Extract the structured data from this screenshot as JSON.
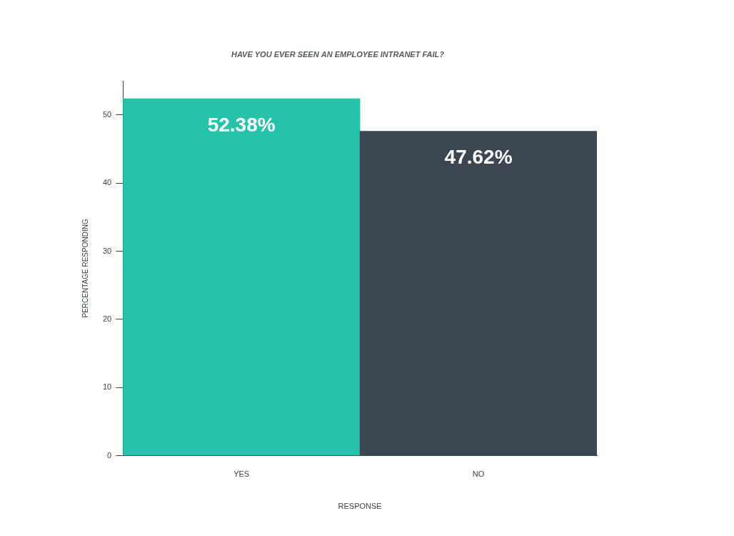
{
  "chart_data": {
    "type": "bar",
    "title": "HAVE YOU EVER SEEN AN EMPLOYEE INTRANET FAIL?",
    "x_label": "RESPONSE",
    "y_label": "PERCENTAGE RESPONDING",
    "categories": [
      "YES",
      "NO"
    ],
    "values": [
      52.38,
      47.62
    ],
    "value_labels": [
      "52.38%",
      "47.62%"
    ],
    "colors": [
      "#26c3aa",
      "#3b4650"
    ],
    "ylim": [
      0,
      55
    ],
    "yticks": [
      0,
      10,
      20,
      30,
      40,
      50
    ],
    "grid": false,
    "data_labels": true
  }
}
